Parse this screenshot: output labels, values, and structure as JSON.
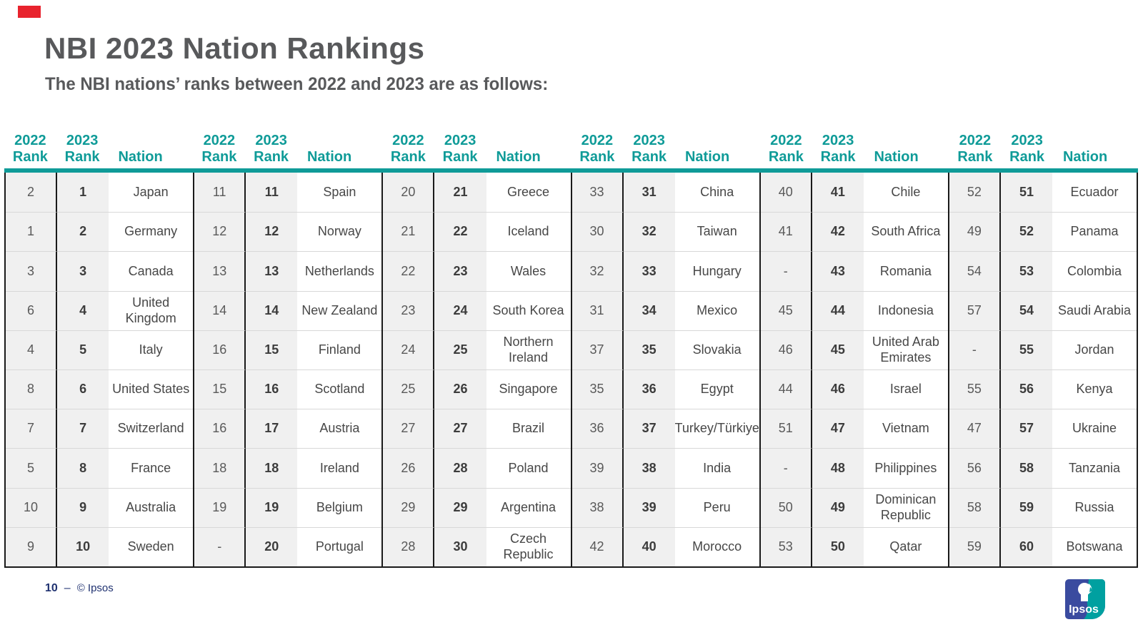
{
  "slide": {
    "title": "NBI 2023 Nation Rankings",
    "subtitle": "The NBI nations’ ranks between 2022 and 2023 are as follows:",
    "page_number": "10",
    "page_dash": "–",
    "copyright": "© Ipsos",
    "logo_text": "Ipsos"
  },
  "colors": {
    "teal_accent": "#0f9b98",
    "title_gray": "#58595b",
    "footer_navy": "#1f3170",
    "red_marker": "#e8232d",
    "logo_blue": "#3a4b9f",
    "logo_teal": "#00a0a0",
    "rank_col_bg": "#f0f0f0",
    "grid_black": "#1a1a1a"
  },
  "table": {
    "header": {
      "year2022": "2022",
      "year2023": "2023",
      "rank_label": "Rank",
      "nation_label": "Nation"
    },
    "groups": [
      [
        {
          "r2022": "2",
          "r2023": "1",
          "nation": "Japan"
        },
        {
          "r2022": "1",
          "r2023": "2",
          "nation": "Germany"
        },
        {
          "r2022": "3",
          "r2023": "3",
          "nation": "Canada"
        },
        {
          "r2022": "6",
          "r2023": "4",
          "nation": "United Kingdom"
        },
        {
          "r2022": "4",
          "r2023": "5",
          "nation": "Italy"
        },
        {
          "r2022": "8",
          "r2023": "6",
          "nation": "United States"
        },
        {
          "r2022": "7",
          "r2023": "7",
          "nation": "Switzerland"
        },
        {
          "r2022": "5",
          "r2023": "8",
          "nation": "France"
        },
        {
          "r2022": "10",
          "r2023": "9",
          "nation": "Australia"
        },
        {
          "r2022": "9",
          "r2023": "10",
          "nation": "Sweden"
        }
      ],
      [
        {
          "r2022": "11",
          "r2023": "11",
          "nation": "Spain"
        },
        {
          "r2022": "12",
          "r2023": "12",
          "nation": "Norway"
        },
        {
          "r2022": "13",
          "r2023": "13",
          "nation": "Netherlands"
        },
        {
          "r2022": "14",
          "r2023": "14",
          "nation": "New Zealand"
        },
        {
          "r2022": "16",
          "r2023": "15",
          "nation": "Finland"
        },
        {
          "r2022": "15",
          "r2023": "16",
          "nation": "Scotland"
        },
        {
          "r2022": "16",
          "r2023": "17",
          "nation": "Austria"
        },
        {
          "r2022": "18",
          "r2023": "18",
          "nation": "Ireland"
        },
        {
          "r2022": "19",
          "r2023": "19",
          "nation": "Belgium"
        },
        {
          "r2022": "-",
          "r2023": "20",
          "nation": "Portugal"
        }
      ],
      [
        {
          "r2022": "20",
          "r2023": "21",
          "nation": "Greece"
        },
        {
          "r2022": "21",
          "r2023": "22",
          "nation": "Iceland"
        },
        {
          "r2022": "22",
          "r2023": "23",
          "nation": "Wales"
        },
        {
          "r2022": "23",
          "r2023": "24",
          "nation": "South Korea"
        },
        {
          "r2022": "24",
          "r2023": "25",
          "nation": "Northern Ireland"
        },
        {
          "r2022": "25",
          "r2023": "26",
          "nation": "Singapore"
        },
        {
          "r2022": "27",
          "r2023": "27",
          "nation": "Brazil"
        },
        {
          "r2022": "26",
          "r2023": "28",
          "nation": "Poland"
        },
        {
          "r2022": "29",
          "r2023": "29",
          "nation": "Argentina"
        },
        {
          "r2022": "28",
          "r2023": "30",
          "nation": "Czech Republic"
        }
      ],
      [
        {
          "r2022": "33",
          "r2023": "31",
          "nation": "China"
        },
        {
          "r2022": "30",
          "r2023": "32",
          "nation": "Taiwan"
        },
        {
          "r2022": "32",
          "r2023": "33",
          "nation": "Hungary"
        },
        {
          "r2022": "31",
          "r2023": "34",
          "nation": "Mexico"
        },
        {
          "r2022": "37",
          "r2023": "35",
          "nation": "Slovakia"
        },
        {
          "r2022": "35",
          "r2023": "36",
          "nation": "Egypt"
        },
        {
          "r2022": "36",
          "r2023": "37",
          "nation": "Turkey/Türkiye"
        },
        {
          "r2022": "39",
          "r2023": "38",
          "nation": "India"
        },
        {
          "r2022": "38",
          "r2023": "39",
          "nation": "Peru"
        },
        {
          "r2022": "42",
          "r2023": "40",
          "nation": "Morocco"
        }
      ],
      [
        {
          "r2022": "40",
          "r2023": "41",
          "nation": "Chile"
        },
        {
          "r2022": "41",
          "r2023": "42",
          "nation": "South Africa"
        },
        {
          "r2022": "-",
          "r2023": "43",
          "nation": "Romania"
        },
        {
          "r2022": "45",
          "r2023": "44",
          "nation": "Indonesia"
        },
        {
          "r2022": "46",
          "r2023": "45",
          "nation": "United Arab Emirates"
        },
        {
          "r2022": "44",
          "r2023": "46",
          "nation": "Israel"
        },
        {
          "r2022": "51",
          "r2023": "47",
          "nation": "Vietnam"
        },
        {
          "r2022": "-",
          "r2023": "48",
          "nation": "Philippines"
        },
        {
          "r2022": "50",
          "r2023": "49",
          "nation": "Dominican Republic"
        },
        {
          "r2022": "53",
          "r2023": "50",
          "nation": "Qatar"
        }
      ],
      [
        {
          "r2022": "52",
          "r2023": "51",
          "nation": "Ecuador"
        },
        {
          "r2022": "49",
          "r2023": "52",
          "nation": "Panama"
        },
        {
          "r2022": "54",
          "r2023": "53",
          "nation": "Colombia"
        },
        {
          "r2022": "57",
          "r2023": "54",
          "nation": "Saudi Arabia"
        },
        {
          "r2022": "-",
          "r2023": "55",
          "nation": "Jordan"
        },
        {
          "r2022": "55",
          "r2023": "56",
          "nation": "Kenya"
        },
        {
          "r2022": "47",
          "r2023": "57",
          "nation": "Ukraine"
        },
        {
          "r2022": "56",
          "r2023": "58",
          "nation": "Tanzania"
        },
        {
          "r2022": "58",
          "r2023": "59",
          "nation": "Russia"
        },
        {
          "r2022": "59",
          "r2023": "60",
          "nation": "Botswana"
        }
      ]
    ]
  }
}
